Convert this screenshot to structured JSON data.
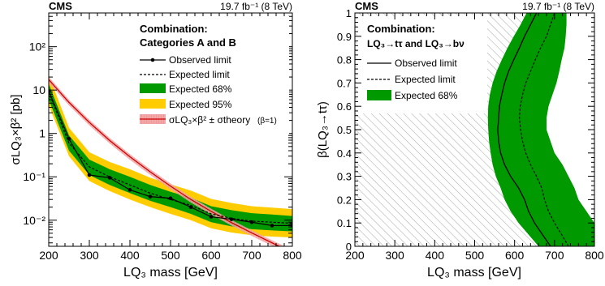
{
  "colors": {
    "band68": "#009900",
    "band95": "#ffcc00",
    "theory_line": "#cc0000",
    "theory_band": "#f4a6a6",
    "hatch": "#9a9a9a",
    "frame": "#000000"
  },
  "chart_data": [
    {
      "type": "line",
      "experiment": "CMS",
      "lumi": "19.7 fb⁻¹ (8 TeV)",
      "xlabel": "LQ₃ mass [GeV]",
      "ylabel": "σLQ₃×β² [pb]",
      "xlim": [
        200,
        800
      ],
      "ylim": [
        0.0025,
        600
      ],
      "yscale": "log",
      "grid": false,
      "x_ticks": [
        "200",
        "300",
        "400",
        "500",
        "600",
        "700",
        "800"
      ],
      "y_ticks": [
        "10⁻²",
        "10⁻¹",
        "1",
        "10",
        "10²"
      ],
      "legend_position": "top-right",
      "legend_header": [
        "Combination:",
        "Categories A and B"
      ],
      "legend": {
        "observed": "Observed limit",
        "expected": "Expected limit",
        "band68": "Expected 68%",
        "band95": "Expected 95%",
        "theory": "σLQ₃×β² ± σtheory",
        "theory_note": "(β=1)"
      },
      "x": [
        200,
        250,
        300,
        350,
        400,
        450,
        500,
        550,
        600,
        650,
        700,
        750,
        800
      ],
      "series": [
        {
          "name": "Observed limit",
          "values": [
            9.5,
            0.75,
            0.11,
            0.095,
            0.05,
            0.035,
            0.032,
            0.02,
            0.012,
            0.0105,
            0.009,
            0.0075,
            0.0075
          ]
        },
        {
          "name": "Expected limit",
          "values": [
            9.0,
            0.6,
            0.17,
            0.1,
            0.065,
            0.042,
            0.03,
            0.022,
            0.014,
            0.011,
            0.0095,
            0.009,
            0.0085
          ]
        },
        {
          "name": "Expected 68%",
          "lower": [
            6.0,
            0.4,
            0.11,
            0.065,
            0.042,
            0.028,
            0.02,
            0.014,
            0.009,
            0.0072,
            0.0062,
            0.0058,
            0.0055
          ],
          "upper": [
            14.0,
            0.9,
            0.25,
            0.15,
            0.1,
            0.065,
            0.045,
            0.033,
            0.021,
            0.017,
            0.0145,
            0.0135,
            0.0125
          ]
        },
        {
          "name": "Expected 95%",
          "lower": [
            4.5,
            0.3,
            0.08,
            0.047,
            0.03,
            0.02,
            0.014,
            0.01,
            0.0065,
            0.0052,
            0.0045,
            0.0042,
            0.004
          ],
          "upper": [
            22.0,
            1.35,
            0.37,
            0.22,
            0.15,
            0.095,
            0.067,
            0.048,
            0.031,
            0.025,
            0.021,
            0.0195,
            0.018
          ]
        },
        {
          "name": "σLQ₃×β² ± σtheory",
          "values": [
            17.4,
            5.2,
            1.8,
            0.69,
            0.29,
            0.13,
            0.061,
            0.03,
            0.016,
            0.0088,
            0.0051,
            0.003,
            0.0018
          ],
          "rel_uncertainty": 0.15
        }
      ]
    },
    {
      "type": "line",
      "experiment": "CMS",
      "lumi": "19.7 fb⁻¹ (8 TeV)",
      "xlabel": "LQ₃ mass [GeV]",
      "ylabel": "β(LQ₃→tτ)",
      "xlim": [
        200,
        800
      ],
      "ylim": [
        0,
        1
      ],
      "grid": false,
      "x_ticks": [
        "200",
        "300",
        "400",
        "500",
        "600",
        "700",
        "800"
      ],
      "y_ticks": [
        "0",
        "0.1",
        "0.2",
        "0.3",
        "0.4",
        "0.5",
        "0.6",
        "0.7",
        "0.8",
        "0.9",
        "1"
      ],
      "legend_position": "top-left",
      "legend_header": [
        "Combination:",
        "LQ₃→tτ and LQ₃→bν"
      ],
      "legend": {
        "observed": "Observed limit",
        "expected": "Expected limit",
        "band68": "Expected 68%"
      },
      "y": [
        0.0,
        0.05,
        0.1,
        0.15,
        0.2,
        0.25,
        0.3,
        0.35,
        0.4,
        0.45,
        0.5,
        0.55,
        0.6,
        0.65,
        0.7,
        0.75,
        0.8,
        0.85,
        0.9,
        0.95,
        1.0
      ],
      "series": [
        {
          "name": "Observed limit",
          "x": [
            690,
            670,
            650,
            635,
            625,
            610,
            590,
            575,
            565,
            560,
            558,
            560,
            562,
            568,
            575,
            585,
            598,
            612,
            625,
            640,
            655
          ]
        },
        {
          "name": "Expected limit",
          "x": [
            735,
            718,
            700,
            685,
            675,
            668,
            655,
            640,
            628,
            620,
            615,
            612,
            614,
            620,
            628,
            640,
            652,
            665,
            680,
            690,
            700
          ]
        },
        {
          "name": "Expected 68%",
          "lower": [
            660,
            635,
            610,
            590,
            575,
            565,
            553,
            545,
            540,
            536,
            534,
            533,
            534,
            538,
            545,
            555,
            568,
            582,
            598,
            615,
            630
          ],
          "upper": [
            800,
            800,
            800,
            780,
            760,
            750,
            735,
            720,
            700,
            690,
            680,
            680,
            685,
            695,
            705,
            712,
            718,
            725,
            728,
            730,
            730
          ]
        }
      ]
    }
  ]
}
